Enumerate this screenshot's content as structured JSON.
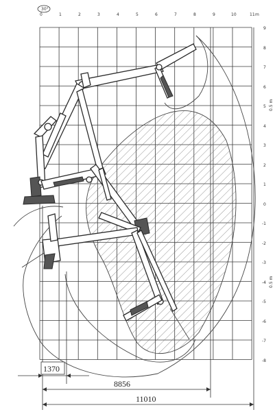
{
  "diagram": {
    "x_unit": "m",
    "x_ticks": [
      "0",
      "1",
      "2",
      "3",
      "4",
      "5",
      "6",
      "7",
      "8",
      "9",
      "10",
      "11"
    ],
    "y_ticks": [
      "9",
      "8",
      "7",
      "6",
      "5",
      "4",
      "3",
      "2",
      "1",
      "0",
      "-1",
      "-2",
      "-3",
      "-4",
      "-5",
      "-6",
      "-7",
      "-8"
    ],
    "side_label_upper": "0.5 m",
    "side_label_lower": "0.5 m",
    "dimensions": {
      "d1": "1370",
      "d2": "8856",
      "d3": "11010"
    }
  }
}
